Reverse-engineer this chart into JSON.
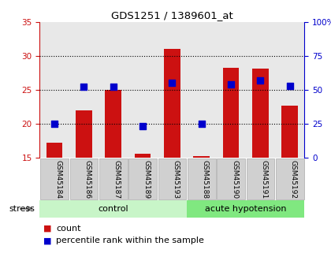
{
  "title": "GDS1251 / 1389601_at",
  "samples": [
    "GSM45184",
    "GSM45186",
    "GSM45187",
    "GSM45189",
    "GSM45193",
    "GSM45188",
    "GSM45190",
    "GSM45191",
    "GSM45192"
  ],
  "counts": [
    17.2,
    22.0,
    25.0,
    15.6,
    31.0,
    15.2,
    28.2,
    28.1,
    22.7
  ],
  "percentiles": [
    25,
    52,
    52,
    23,
    55,
    25,
    54,
    57,
    53
  ],
  "groups": [
    {
      "label": "control",
      "start": 0,
      "end": 5,
      "color": "#c8f5c8"
    },
    {
      "label": "acute hypotension",
      "start": 5,
      "end": 9,
      "color": "#80e880"
    }
  ],
  "bar_color": "#cc1111",
  "dot_color": "#0000cc",
  "left_ylim": [
    15,
    35
  ],
  "right_ylim": [
    0,
    100
  ],
  "left_yticks": [
    15,
    20,
    25,
    30,
    35
  ],
  "right_yticks": [
    0,
    25,
    50,
    75,
    100
  ],
  "right_yticklabels": [
    "0",
    "25",
    "50",
    "75",
    "100%"
  ],
  "dotted_lines": [
    20,
    25,
    30
  ],
  "bg_color": "#ffffff",
  "plot_bg_color": "#e8e8e8",
  "sample_box_color": "#d0d0d0",
  "stress_label": "stress",
  "legend_count": "count",
  "legend_pct": "percentile rank within the sample"
}
